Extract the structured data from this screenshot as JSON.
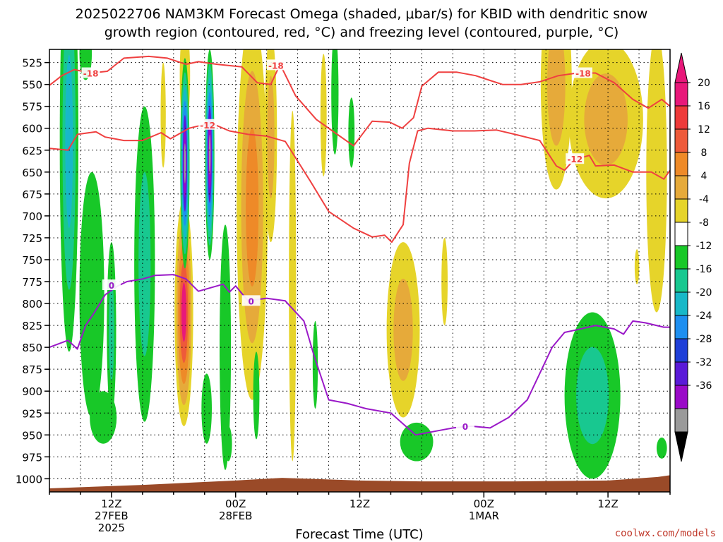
{
  "title_line1": "2025022706 NAM3KM Forecast Omega (shaded, μbar/s) for KBID with dendritic snow",
  "title_line2": "growth region (contoured, red, °C) and freezing level (contoured, purple, °C)",
  "credit": "coolwx.com/models",
  "chart_data": {
    "type": "heatmap",
    "title": "2025022706 NAM3KM Forecast Omega (shaded, μbar/s) for KBID with dendritic snow growth region (contoured, red, °C) and freezing level (contoured, purple, °C)",
    "xlabel": "Forecast Time (UTC)",
    "ylabel": "",
    "x_unit": "forecast hour from 2025-02-27 06Z",
    "xlim": [
      0,
      60
    ],
    "ylim_hpa": [
      510,
      1015
    ],
    "y_scale": "pressure (hPa), increasing downward",
    "y_ticks": [
      525,
      550,
      575,
      600,
      625,
      650,
      675,
      700,
      725,
      750,
      775,
      800,
      825,
      850,
      875,
      900,
      925,
      950,
      975,
      1000
    ],
    "x_ticks": [
      {
        "hour": 6,
        "label": "12Z",
        "label2": "27FEB",
        "label3": "2025"
      },
      {
        "hour": 18,
        "label": "00Z",
        "label2": "28FEB",
        "label3": ""
      },
      {
        "hour": 30,
        "label": "12Z",
        "label2": "",
        "label3": ""
      },
      {
        "hour": 42,
        "label": "00Z",
        "label2": "1MAR",
        "label3": ""
      },
      {
        "hour": 54,
        "label": "12Z",
        "label2": "",
        "label3": ""
      }
    ],
    "grid": "dotted",
    "colorbar": {
      "levels": [
        -36,
        -32,
        -28,
        -24,
        -20,
        -16,
        -12,
        -8,
        -4,
        4,
        8,
        12,
        16,
        20
      ],
      "colors": [
        "#9a9a9a",
        "#9a0ac8",
        "#5a1ad8",
        "#1f3fd8",
        "#1e8ff0",
        "#18b8c8",
        "#18c890",
        "#18c828",
        "#ffffff",
        "#e6d42a",
        "#e6aa3a",
        "#ee8a28",
        "#ee5a3a",
        "#ee3a3a",
        "#e8187a"
      ],
      "extends": [
        "below: black",
        "above: magenta"
      ],
      "placement": "right"
    },
    "omega_blobs": [
      {
        "x": 1.9,
        "p": 615,
        "rx": 0.9,
        "rp": 240,
        "level_colors": [
          "#18c828",
          "#18c890",
          "#18b8c8"
        ]
      },
      {
        "x": 3.5,
        "p": 515,
        "rx": 0.6,
        "rp": 30,
        "level_colors": [
          "#18c828"
        ]
      },
      {
        "x": 4.1,
        "p": 790,
        "rx": 1.2,
        "rp": 140,
        "level_colors": [
          "#18c828"
        ]
      },
      {
        "x": 6.0,
        "p": 830,
        "rx": 0.45,
        "rp": 100,
        "level_colors": [
          "#18c828",
          "#18c890"
        ]
      },
      {
        "x": 5.2,
        "p": 930,
        "rx": 1.3,
        "rp": 30,
        "level_colors": [
          "#18c828"
        ]
      },
      {
        "x": 9.2,
        "p": 755,
        "rx": 1.0,
        "rp": 180,
        "level_colors": [
          "#18c828",
          "#18c890"
        ]
      },
      {
        "x": 11.0,
        "p": 585,
        "rx": 0.25,
        "rp": 60,
        "level_colors": [
          "#e6d42a"
        ]
      },
      {
        "x": 13.0,
        "p": 810,
        "rx": 0.9,
        "rp": 130,
        "level_colors": [
          "#e6d42a",
          "#e6aa3a",
          "#ee8a28",
          "#ee5a3a",
          "#e8187a"
        ]
      },
      {
        "x": 13.1,
        "p": 540,
        "rx": 0.5,
        "rp": 60,
        "level_colors": [
          "#e6d42a"
        ]
      },
      {
        "x": 13.1,
        "p": 640,
        "rx": 0.45,
        "rp": 120,
        "level_colors": [
          "#18c828",
          "#18c890",
          "#18b8c8",
          "#1e8ff0",
          "#5a1ad8",
          "#9a0ac8",
          "#9a9a9a"
        ]
      },
      {
        "x": 15.5,
        "p": 630,
        "rx": 0.45,
        "rp": 120,
        "level_colors": [
          "#18c828",
          "#18c890",
          "#18b8c8",
          "#1e8ff0",
          "#5a1ad8",
          "#9a0ac8",
          "#9a9a9a"
        ]
      },
      {
        "x": 15.2,
        "p": 920,
        "rx": 0.5,
        "rp": 40,
        "level_colors": [
          "#18c828"
        ]
      },
      {
        "x": 17.0,
        "p": 850,
        "rx": 0.55,
        "rp": 140,
        "level_colors": [
          "#18c828"
        ]
      },
      {
        "x": 17.3,
        "p": 960,
        "rx": 0.35,
        "rp": 20,
        "level_colors": [
          "#18c828"
        ]
      },
      {
        "x": 19.6,
        "p": 690,
        "rx": 1.5,
        "rp": 220,
        "level_colors": [
          "#e6d42a",
          "#e6aa3a",
          "#ee8a28"
        ]
      },
      {
        "x": 21.4,
        "p": 610,
        "rx": 0.6,
        "rp": 120,
        "level_colors": [
          "#e6d42a",
          "#e6aa3a"
        ]
      },
      {
        "x": 20.0,
        "p": 905,
        "rx": 0.3,
        "rp": 50,
        "level_colors": [
          "#18c828"
        ]
      },
      {
        "x": 23.5,
        "p": 780,
        "rx": 0.35,
        "rp": 200,
        "level_colors": [
          "#e6d42a"
        ]
      },
      {
        "x": 25.7,
        "p": 870,
        "rx": 0.25,
        "rp": 50,
        "level_colors": [
          "#18c828"
        ]
      },
      {
        "x": 26.5,
        "p": 585,
        "rx": 0.3,
        "rp": 70,
        "level_colors": [
          "#e6d42a"
        ]
      },
      {
        "x": 27.6,
        "p": 560,
        "rx": 0.35,
        "rp": 70,
        "level_colors": [
          "#18c828"
        ]
      },
      {
        "x": 29.2,
        "p": 605,
        "rx": 0.3,
        "rp": 40,
        "level_colors": [
          "#18c828"
        ]
      },
      {
        "x": 34.2,
        "p": 830,
        "rx": 1.6,
        "rp": 100,
        "level_colors": [
          "#e6d42a",
          "#e6aa3a"
        ]
      },
      {
        "x": 38.2,
        "p": 775,
        "rx": 0.3,
        "rp": 50,
        "level_colors": [
          "#e6d42a"
        ]
      },
      {
        "x": 35.5,
        "p": 958,
        "rx": 1.6,
        "rp": 22,
        "level_colors": [
          "#18c828"
        ]
      },
      {
        "x": 49.0,
        "p": 550,
        "rx": 1.5,
        "rp": 120,
        "level_colors": [
          "#e6d42a",
          "#e6aa3a"
        ]
      },
      {
        "x": 53.8,
        "p": 590,
        "rx": 3.6,
        "rp": 90,
        "level_colors": [
          "#e6d42a",
          "#e6aa3a"
        ]
      },
      {
        "x": 58.7,
        "p": 650,
        "rx": 1.0,
        "rp": 160,
        "level_colors": [
          "#e6d42a"
        ]
      },
      {
        "x": 52.5,
        "p": 905,
        "rx": 2.7,
        "rp": 95,
        "level_colors": [
          "#18c828",
          "#18c890"
        ]
      },
      {
        "x": 56.8,
        "p": 758,
        "rx": 0.22,
        "rp": 20,
        "level_colors": [
          "#e6d42a"
        ]
      },
      {
        "x": 59.2,
        "p": 965,
        "rx": 0.5,
        "rp": 12,
        "level_colors": [
          "#18c828"
        ]
      }
    ],
    "contours": [
      {
        "name": "-18",
        "color": "#ef4040",
        "labels": [
          {
            "x": 4.0,
            "p": 537,
            "text": "-18"
          },
          {
            "x": 21.9,
            "p": 528,
            "text": "-18"
          },
          {
            "x": 51.6,
            "p": 537,
            "text": "-18"
          }
        ],
        "points": [
          [
            0,
            551
          ],
          [
            1.2,
            540
          ],
          [
            2.4,
            533
          ],
          [
            4,
            537
          ],
          [
            5.6,
            535
          ],
          [
            7.2,
            520
          ],
          [
            9.6,
            518
          ],
          [
            11.4,
            520
          ],
          [
            13.2,
            527
          ],
          [
            14.4,
            524
          ],
          [
            16.2,
            527
          ],
          [
            18.6,
            530
          ],
          [
            20.1,
            548
          ],
          [
            21.4,
            550
          ],
          [
            22.3,
            527
          ],
          [
            23.8,
            563
          ],
          [
            25.8,
            590
          ],
          [
            27.6,
            605
          ],
          [
            29.4,
            620
          ],
          [
            31.2,
            592
          ],
          [
            32.9,
            593
          ],
          [
            34.1,
            600
          ],
          [
            35.2,
            588
          ],
          [
            36,
            552
          ],
          [
            37.6,
            536
          ],
          [
            39.4,
            536
          ],
          [
            41.2,
            540
          ],
          [
            42.5,
            545
          ],
          [
            43.8,
            550
          ],
          [
            45.6,
            550
          ],
          [
            47.4,
            547
          ],
          [
            49.2,
            540
          ],
          [
            51,
            537
          ],
          [
            52.8,
            537
          ],
          [
            54.6,
            548
          ],
          [
            56.4,
            567
          ],
          [
            57.9,
            577
          ],
          [
            59.2,
            567
          ],
          [
            60,
            575
          ]
        ]
      },
      {
        "name": "-12",
        "color": "#ef4040",
        "labels": [
          {
            "x": 15.3,
            "p": 596,
            "text": "-12"
          },
          {
            "x": 50.8,
            "p": 635,
            "text": "-12"
          }
        ],
        "points": [
          [
            0,
            623
          ],
          [
            1.8,
            625
          ],
          [
            2.7,
            607
          ],
          [
            4.5,
            604
          ],
          [
            5.4,
            610
          ],
          [
            7.2,
            614
          ],
          [
            9,
            614
          ],
          [
            10.8,
            605
          ],
          [
            11.7,
            612
          ],
          [
            13.5,
            600
          ],
          [
            15.6,
            594
          ],
          [
            17.4,
            603
          ],
          [
            19.2,
            607
          ],
          [
            21,
            609
          ],
          [
            22.8,
            615
          ],
          [
            25.2,
            660
          ],
          [
            27,
            695
          ],
          [
            29.4,
            714
          ],
          [
            31.2,
            724
          ],
          [
            32.4,
            722
          ],
          [
            33.1,
            730
          ],
          [
            34.2,
            710
          ],
          [
            34.8,
            640
          ],
          [
            35.6,
            603
          ],
          [
            36.6,
            600
          ],
          [
            39,
            603
          ],
          [
            41.1,
            603
          ],
          [
            43.2,
            602
          ],
          [
            45,
            607
          ],
          [
            47.4,
            614
          ],
          [
            49,
            643
          ],
          [
            49.8,
            648
          ],
          [
            50.7,
            636
          ],
          [
            52.2,
            631
          ],
          [
            52.8,
            643
          ],
          [
            54.6,
            642
          ],
          [
            56.4,
            650
          ],
          [
            58.2,
            650
          ],
          [
            59.4,
            658
          ],
          [
            60,
            648
          ]
        ]
      },
      {
        "name": "0",
        "color": "#9a18c8",
        "labels": [
          {
            "x": 6.0,
            "p": 779,
            "text": "0"
          },
          {
            "x": 19.5,
            "p": 797,
            "text": "0"
          },
          {
            "x": 40.2,
            "p": 940,
            "text": "0"
          }
        ],
        "points": [
          [
            0,
            850
          ],
          [
            1.8,
            842
          ],
          [
            2.7,
            852
          ],
          [
            3.5,
            825
          ],
          [
            4.2,
            813
          ],
          [
            5.4,
            790
          ],
          [
            6.6,
            780
          ],
          [
            7.5,
            775
          ],
          [
            9,
            772
          ],
          [
            10.2,
            768
          ],
          [
            12,
            767
          ],
          [
            13.2,
            772
          ],
          [
            14.4,
            786
          ],
          [
            15.6,
            782
          ],
          [
            16.8,
            778
          ],
          [
            17.4,
            787
          ],
          [
            18,
            780
          ],
          [
            19.2,
            797
          ],
          [
            21,
            794
          ],
          [
            22.8,
            797
          ],
          [
            24.6,
            820
          ],
          [
            25.6,
            860
          ],
          [
            26.3,
            885
          ],
          [
            27,
            910
          ],
          [
            28.8,
            914
          ],
          [
            30.6,
            920
          ],
          [
            33,
            925
          ],
          [
            35.4,
            950
          ],
          [
            37.2,
            946
          ],
          [
            39,
            942
          ],
          [
            40.8,
            940
          ],
          [
            42.6,
            942
          ],
          [
            44.4,
            930
          ],
          [
            46.2,
            910
          ],
          [
            48.6,
            850
          ],
          [
            49.8,
            833
          ],
          [
            51,
            830
          ],
          [
            52.8,
            825
          ],
          [
            54.6,
            829
          ],
          [
            55.5,
            835
          ],
          [
            56.4,
            820
          ],
          [
            57.6,
            822
          ],
          [
            59.4,
            827
          ],
          [
            60,
            827
          ]
        ]
      }
    ],
    "terrain": {
      "color": "#9a4a28",
      "base_hpa": 1015,
      "top_points": [
        [
          0,
          1011
        ],
        [
          9,
          1007
        ],
        [
          18,
          1002
        ],
        [
          22.5,
          999
        ],
        [
          30,
          1002
        ],
        [
          36,
          1003
        ],
        [
          45,
          1003
        ],
        [
          54,
          1002
        ],
        [
          58.8,
          998
        ],
        [
          60,
          996
        ]
      ]
    }
  }
}
